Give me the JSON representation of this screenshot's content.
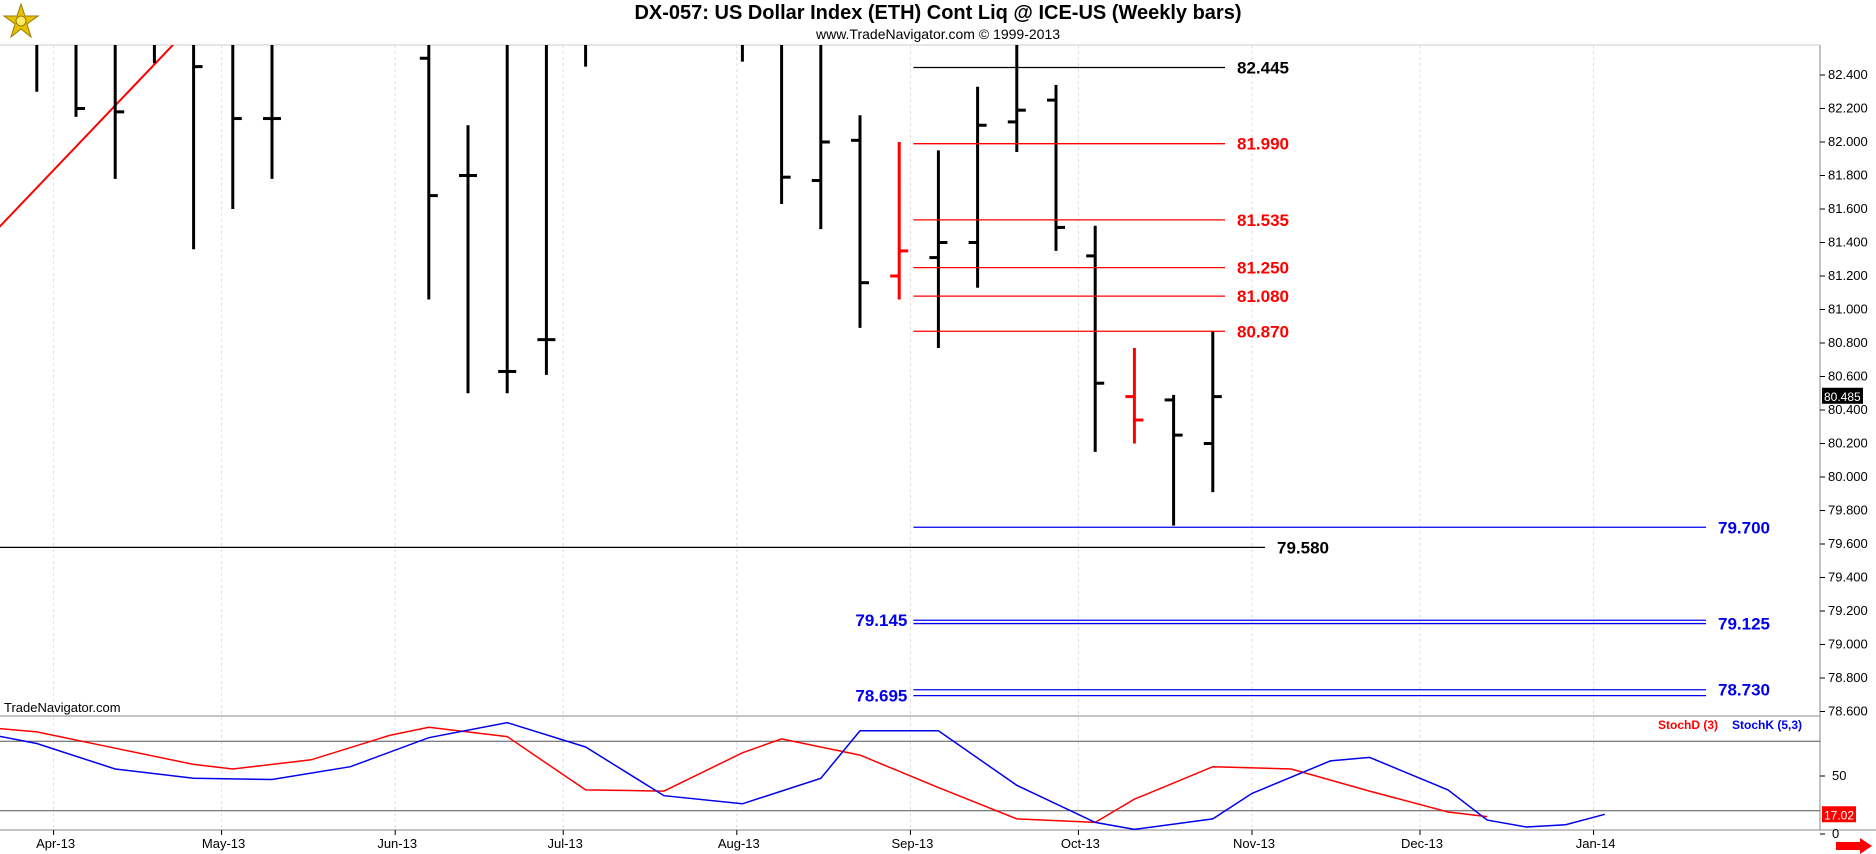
{
  "header": {
    "title": "DX-057:  US Dollar Index (ETH) Cont Liq @ ICE-US  (Weekly bars)",
    "subtitle": "www.TradeNavigator.com © 1999-2013"
  },
  "watermark": "TradeNavigator.com",
  "colors": {
    "up_bar": "#000000",
    "down_bar": "#ff0000",
    "red_line": "#ff0000",
    "blue_line": "#0000ee",
    "black_line": "#000000"
  },
  "chart_data": [
    {
      "type": "ohlc",
      "name": "price",
      "ylim": [
        78.4,
        82.6
      ],
      "y_ticks": [
        "82.400",
        "82.200",
        "82.000",
        "81.800",
        "81.600",
        "81.400",
        "81.200",
        "81.000",
        "80.800",
        "80.600",
        "80.400",
        "80.200",
        "80.000",
        "79.800",
        "79.600",
        "79.400",
        "79.200",
        "79.000",
        "78.800",
        "78.600"
      ],
      "x_labels": [
        "Apr-13",
        "May-13",
        "Jun-13",
        "Jul-13",
        "Aug-13",
        "Sep-13",
        "Oct-13",
        "Nov-13",
        "Dec-13",
        "Jan-14"
      ],
      "last_price": "80.485",
      "bars": [
        {
          "date": "2013-03-15",
          "open": 82.3,
          "high": 83.5,
          "low": 81.85,
          "close": 82.4,
          "color": "gray"
        },
        {
          "date": "2013-03-29",
          "open": 82.8,
          "high": 83.6,
          "low": 82.3,
          "close": 82.8,
          "color": "black"
        },
        {
          "date": "2013-04-05",
          "open": 82.8,
          "high": 83.5,
          "low": 82.15,
          "close": 82.2,
          "color": "black"
        },
        {
          "date": "2013-04-12",
          "open": 82.6,
          "high": 83.4,
          "low": 81.78,
          "close": 82.18,
          "color": "black"
        },
        {
          "date": "2013-04-19",
          "open": 82.7,
          "high": 83.3,
          "low": 82.47,
          "close": 82.7,
          "color": "black"
        },
        {
          "date": "2013-04-26",
          "open": 82.7,
          "high": 82.7,
          "low": 81.36,
          "close": 82.45,
          "color": "black"
        },
        {
          "date": "2013-05-03",
          "open": 82.7,
          "high": 82.7,
          "low": 81.6,
          "close": 82.14,
          "color": "black"
        },
        {
          "date": "2013-05-10",
          "open": 82.14,
          "high": 83.2,
          "low": 81.78,
          "close": 82.14,
          "color": "black"
        },
        {
          "date": "2013-06-07",
          "open": 82.5,
          "high": 83.2,
          "low": 81.06,
          "close": 81.68,
          "color": "black"
        },
        {
          "date": "2013-06-14",
          "open": 81.8,
          "high": 82.1,
          "low": 80.5,
          "close": 81.8,
          "color": "black"
        },
        {
          "date": "2013-06-21",
          "open": 80.63,
          "high": 83.0,
          "low": 80.5,
          "close": 80.63,
          "color": "black"
        },
        {
          "date": "2013-06-28",
          "open": 80.82,
          "high": 83.0,
          "low": 80.61,
          "close": 80.82,
          "color": "black"
        },
        {
          "date": "2013-07-05",
          "open": 82.7,
          "high": 83.0,
          "low": 82.45,
          "close": 82.7,
          "color": "black"
        },
        {
          "date": "2013-08-02",
          "open": 82.7,
          "high": 83.0,
          "low": 82.48,
          "close": 82.7,
          "color": "black"
        },
        {
          "date": "2013-08-09",
          "open": 82.6,
          "high": 83.2,
          "low": 81.63,
          "close": 81.79,
          "color": "black"
        },
        {
          "date": "2013-08-16",
          "open": 81.77,
          "high": 82.6,
          "low": 81.48,
          "close": 82.0,
          "color": "black"
        },
        {
          "date": "2013-08-23",
          "open": 82.01,
          "high": 82.16,
          "low": 80.89,
          "close": 81.16,
          "color": "black"
        },
        {
          "date": "2013-08-30",
          "open": 81.2,
          "high": 82.0,
          "low": 81.06,
          "close": 81.35,
          "color": "red"
        },
        {
          "date": "2013-09-06",
          "open": 81.31,
          "high": 81.95,
          "low": 80.77,
          "close": 81.4,
          "color": "black"
        },
        {
          "date": "2013-09-13",
          "open": 81.4,
          "high": 82.33,
          "low": 81.13,
          "close": 82.1,
          "color": "black"
        },
        {
          "date": "2013-09-20",
          "open": 82.12,
          "high": 82.6,
          "low": 81.94,
          "close": 82.19,
          "color": "black"
        },
        {
          "date": "2013-09-27",
          "open": 82.25,
          "high": 82.34,
          "low": 81.35,
          "close": 81.49,
          "color": "black"
        },
        {
          "date": "2013-10-04",
          "open": 81.32,
          "high": 81.5,
          "low": 80.15,
          "close": 80.56,
          "color": "black"
        },
        {
          "date": "2013-10-11",
          "open": 80.48,
          "high": 80.77,
          "low": 80.2,
          "close": 80.34,
          "color": "red"
        },
        {
          "date": "2013-10-18",
          "open": 80.46,
          "high": 80.49,
          "low": 79.71,
          "close": 80.25,
          "color": "black"
        },
        {
          "date": "2013-10-25",
          "open": 80.2,
          "high": 80.87,
          "low": 79.91,
          "close": 80.48,
          "color": "black"
        }
      ],
      "levels": [
        {
          "value": "82.445",
          "color": "black",
          "side": "right"
        },
        {
          "value": "81.990",
          "color": "red",
          "side": "right"
        },
        {
          "value": "81.535",
          "color": "red",
          "side": "right"
        },
        {
          "value": "81.250",
          "color": "red",
          "side": "right"
        },
        {
          "value": "81.080",
          "color": "red",
          "side": "right"
        },
        {
          "value": "80.870",
          "color": "red",
          "side": "right"
        },
        {
          "value": "79.700",
          "color": "blue",
          "side": "far"
        },
        {
          "value": "79.580",
          "color": "black",
          "side": "full"
        },
        {
          "value": "79.145",
          "color": "blue",
          "side": "left"
        },
        {
          "value": "79.125",
          "color": "blue",
          "side": "far"
        },
        {
          "value": "78.695",
          "color": "blue",
          "side": "left"
        },
        {
          "value": "78.730",
          "color": "blue",
          "side": "far"
        }
      ],
      "trendline": {
        "color": "red",
        "from": {
          "date": "2013-03-04",
          "value": 80.85
        },
        "to": {
          "date": "2013-05-10",
          "value": 83.2
        }
      }
    },
    {
      "type": "line",
      "name": "stochastic",
      "ylim": [
        0,
        100
      ],
      "y_ticks": [
        "50",
        "0"
      ],
      "last_value": "17.02",
      "legend": [
        "StochD (3)",
        "StochK (5,3)"
      ],
      "series": [
        {
          "name": "StochD (3)",
          "color": "red",
          "points": [
            [
              "2013-03-15",
              94
            ],
            [
              "2013-03-29",
              88
            ],
            [
              "2013-04-12",
              74
            ],
            [
              "2013-04-26",
              60
            ],
            [
              "2013-05-03",
              56
            ],
            [
              "2013-05-17",
              64
            ],
            [
              "2013-05-31",
              85
            ],
            [
              "2013-06-07",
              92
            ],
            [
              "2013-06-21",
              84
            ],
            [
              "2013-07-05",
              38
            ],
            [
              "2013-07-19",
              37
            ],
            [
              "2013-08-02",
              70
            ],
            [
              "2013-08-09",
              82
            ],
            [
              "2013-08-23",
              68
            ],
            [
              "2013-09-06",
              40
            ],
            [
              "2013-09-20",
              13
            ],
            [
              "2013-10-04",
              10
            ],
            [
              "2013-10-11",
              30
            ],
            [
              "2013-10-25",
              58
            ],
            [
              "2013-11-08",
              56
            ],
            [
              "2013-11-22",
              37
            ],
            [
              "2013-12-06",
              19
            ],
            [
              "2013-12-13",
              15
            ]
          ]
        },
        {
          "name": "StochK (5,3)",
          "color": "blue",
          "points": [
            [
              "2013-03-15",
              91
            ],
            [
              "2013-03-29",
              78
            ],
            [
              "2013-04-12",
              56
            ],
            [
              "2013-04-26",
              48
            ],
            [
              "2013-05-10",
              47
            ],
            [
              "2013-05-24",
              58
            ],
            [
              "2013-06-07",
              83
            ],
            [
              "2013-06-21",
              96
            ],
            [
              "2013-07-05",
              75
            ],
            [
              "2013-07-19",
              33
            ],
            [
              "2013-08-02",
              26
            ],
            [
              "2013-08-16",
              48
            ],
            [
              "2013-08-23",
              89
            ],
            [
              "2013-09-06",
              89
            ],
            [
              "2013-09-20",
              42
            ],
            [
              "2013-10-04",
              10
            ],
            [
              "2013-10-11",
              4
            ],
            [
              "2013-10-25",
              13
            ],
            [
              "2013-11-01",
              35
            ],
            [
              "2013-11-15",
              63
            ],
            [
              "2013-11-22",
              66
            ],
            [
              "2013-12-06",
              38
            ],
            [
              "2013-12-13",
              12
            ],
            [
              "2013-12-20",
              6
            ],
            [
              "2013-12-27",
              8
            ],
            [
              "2014-01-03",
              17
            ]
          ]
        }
      ]
    }
  ]
}
